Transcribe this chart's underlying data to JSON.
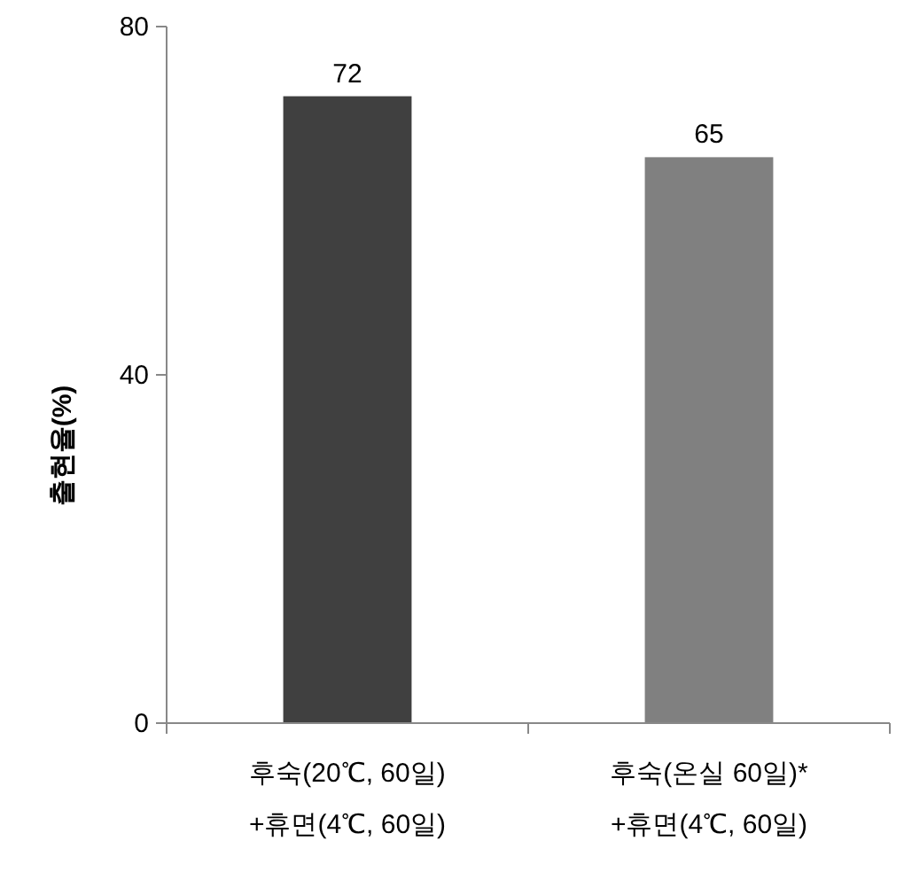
{
  "chart_data": {
    "type": "bar",
    "ylabel": "출현율(%)",
    "categories": [
      "후숙(20℃, 60일)\n+휴면(4℃, 60일)",
      "후숙(온실 60일)*\n+휴면(4℃, 60일)"
    ],
    "values": [
      72,
      65
    ],
    "colors": [
      "#404040",
      "#808080"
    ],
    "ylim": [
      0,
      80
    ],
    "yticks": [
      0,
      40,
      80
    ],
    "data_labels": true,
    "grid": false
  }
}
